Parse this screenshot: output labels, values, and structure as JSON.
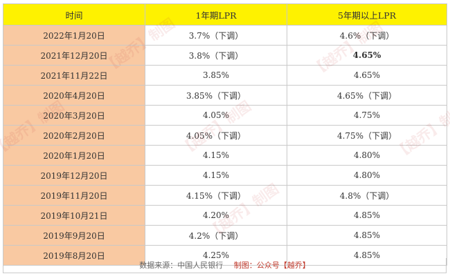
{
  "table": {
    "headers": {
      "date": "时间",
      "one_year": "1年期LPR",
      "five_year": "5年期以上LPR"
    },
    "rows": [
      {
        "date": "2022年1月20日",
        "one_year": "3.7%（下调）",
        "one_year_cut": true,
        "five_year": "4.6%（下调）",
        "five_year_cut": true,
        "five_year_bold": false
      },
      {
        "date": "2021年12月20日",
        "one_year": "3.8%（下调）",
        "one_year_cut": true,
        "five_year": "4.65%",
        "five_year_cut": false,
        "five_year_bold": true
      },
      {
        "date": "2021年11月22日",
        "one_year": "3.85%",
        "one_year_cut": false,
        "five_year": "4.65%",
        "five_year_cut": false,
        "five_year_bold": false
      },
      {
        "date": "2020年4月20日",
        "one_year": "3.85%（下调）",
        "one_year_cut": true,
        "five_year": "4.65%（下调）",
        "five_year_cut": true,
        "five_year_bold": false
      },
      {
        "date": "2020年3月20日",
        "one_year": "4.05%",
        "one_year_cut": false,
        "five_year": "4.75%",
        "five_year_cut": false,
        "five_year_bold": false
      },
      {
        "date": "2020年2月20日",
        "one_year": "4.05%（下调）",
        "one_year_cut": true,
        "five_year": "4.75%（下调）",
        "five_year_cut": true,
        "five_year_bold": false
      },
      {
        "date": "2020年1月20日",
        "one_year": "4.15%",
        "one_year_cut": false,
        "five_year": "4.80%",
        "five_year_cut": false,
        "five_year_bold": false
      },
      {
        "date": "2019年12月20日",
        "one_year": "4.15%",
        "one_year_cut": false,
        "five_year": "4.80%",
        "five_year_cut": false,
        "five_year_bold": false
      },
      {
        "date": "2019年11月20日",
        "one_year": "4.15%（下调）",
        "one_year_cut": true,
        "five_year": "4.8%（下调）",
        "five_year_cut": true,
        "five_year_bold": false
      },
      {
        "date": "2019年10月21日",
        "one_year": "4.20%",
        "one_year_cut": false,
        "five_year": "4.85%",
        "five_year_cut": false,
        "five_year_bold": false
      },
      {
        "date": "2019年9月20日",
        "one_year": "4.2%（下调）",
        "one_year_cut": true,
        "five_year": "4.85%",
        "five_year_cut": false,
        "five_year_bold": false
      },
      {
        "date": "2019年8月20日",
        "one_year": "4.25%",
        "one_year_cut": false,
        "five_year": "4.85%",
        "five_year_cut": false,
        "five_year_bold": false
      }
    ]
  },
  "footer": {
    "source": "数据来源：中国人民银行",
    "credit": "制图：公众号【越乔】"
  },
  "watermark": {
    "texts": [
      "【越乔】制图",
      "【越乔】制图",
      "【越乔】制图",
      "【越乔】制图",
      "【越乔】制图",
      "【越乔】制图"
    ]
  },
  "colors": {
    "header_bg": "#fef200",
    "date_bg": "#f9c9a2",
    "cut_text": "#c0392b"
  }
}
